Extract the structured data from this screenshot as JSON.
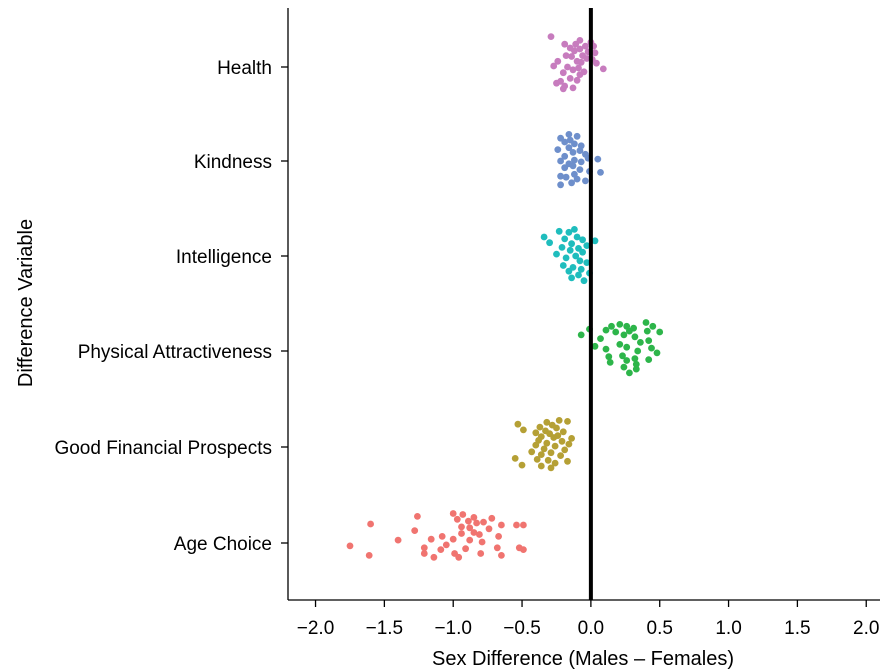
{
  "chart_data": {
    "type": "scatter",
    "xlabel": "Sex Difference (Males – Females)",
    "ylabel": "Difference Variable",
    "xlim": [
      -2.2,
      2.1
    ],
    "x_ticks": [
      -2.0,
      -1.5,
      -1.0,
      -0.5,
      0.0,
      0.5,
      1.0,
      1.5,
      2.0
    ],
    "x_tick_labels": [
      "−2.0",
      "−1.5",
      "−1.0",
      "−0.5",
      "0.0",
      "0.5",
      "1.0",
      "1.5",
      "2.0"
    ],
    "reference_line_x": 0,
    "grid": false,
    "legend": "none",
    "categories": [
      "Health",
      "Kindness",
      "Intelligence",
      "Physical Attractiveness",
      "Good Financial Prospects",
      "Age Choice"
    ],
    "series": [
      {
        "category": "Health",
        "color": "#C77CBE",
        "points": [
          [
            -0.29,
            0.32
          ],
          [
            -0.08,
            0.28
          ],
          [
            0.0,
            0.26
          ],
          [
            -0.19,
            0.24
          ],
          [
            -0.11,
            0.24
          ],
          [
            -0.04,
            0.22
          ],
          [
            0.02,
            0.22
          ],
          [
            -0.15,
            0.2
          ],
          [
            -0.08,
            0.19
          ],
          [
            -0.12,
            0.17
          ],
          [
            -0.02,
            0.16
          ],
          [
            0.03,
            0.15
          ],
          [
            -0.18,
            0.12
          ],
          [
            -0.06,
            0.12
          ],
          [
            -0.14,
            0.11
          ],
          [
            -0.03,
            0.09
          ],
          [
            0.01,
            0.08
          ],
          [
            -0.24,
            0.06
          ],
          [
            -0.1,
            0.06
          ],
          [
            -0.07,
            0.05
          ],
          [
            0.04,
            0.04
          ],
          [
            -0.27,
            0.01
          ],
          [
            -0.17,
            0.0
          ],
          [
            -0.09,
            -0.01
          ],
          [
            0.09,
            -0.02
          ],
          [
            -0.13,
            -0.03
          ],
          [
            -0.05,
            -0.05
          ],
          [
            -0.2,
            -0.06
          ],
          [
            -0.08,
            -0.08
          ],
          [
            -0.15,
            -0.12
          ],
          [
            -0.1,
            -0.14
          ],
          [
            -0.22,
            -0.15
          ],
          [
            -0.25,
            -0.17
          ],
          [
            -0.19,
            -0.2
          ],
          [
            -0.13,
            -0.22
          ],
          [
            -0.2,
            -0.23
          ]
        ]
      },
      {
        "category": "Kindness",
        "color": "#6E8FCB",
        "points": [
          [
            -0.16,
            0.28
          ],
          [
            -0.1,
            0.26
          ],
          [
            -0.22,
            0.24
          ],
          [
            -0.15,
            0.22
          ],
          [
            -0.19,
            0.2
          ],
          [
            -0.12,
            0.18
          ],
          [
            -0.07,
            0.16
          ],
          [
            -0.16,
            0.14
          ],
          [
            -0.24,
            0.12
          ],
          [
            -0.08,
            0.11
          ],
          [
            -0.13,
            0.09
          ],
          [
            -0.04,
            0.07
          ],
          [
            -0.19,
            0.05
          ],
          [
            -0.02,
            0.03
          ],
          [
            0.05,
            0.02
          ],
          [
            -0.12,
            0.01
          ],
          [
            -0.22,
            0.0
          ],
          [
            -0.07,
            -0.01
          ],
          [
            -0.16,
            -0.03
          ],
          [
            -0.13,
            -0.05
          ],
          [
            -0.19,
            -0.07
          ],
          [
            -0.08,
            -0.09
          ],
          [
            -0.01,
            -0.11
          ],
          [
            0.07,
            -0.12
          ],
          [
            -0.12,
            -0.14
          ],
          [
            -0.22,
            -0.16
          ],
          [
            -0.18,
            -0.17
          ],
          [
            -0.1,
            -0.19
          ],
          [
            -0.04,
            -0.21
          ],
          [
            -0.14,
            -0.23
          ],
          [
            -0.22,
            -0.25
          ]
        ]
      },
      {
        "category": "Intelligence",
        "color": "#1FBDBD",
        "points": [
          [
            -0.12,
            0.28
          ],
          [
            -0.23,
            0.26
          ],
          [
            -0.16,
            0.25
          ],
          [
            -0.34,
            0.2
          ],
          [
            -0.1,
            0.2
          ],
          [
            -0.19,
            0.18
          ],
          [
            -0.06,
            0.17
          ],
          [
            0.03,
            0.16
          ],
          [
            -0.3,
            0.14
          ],
          [
            -0.14,
            0.13
          ],
          [
            -0.03,
            0.11
          ],
          [
            -0.21,
            0.09
          ],
          [
            -0.09,
            0.08
          ],
          [
            -0.15,
            0.06
          ],
          [
            -0.06,
            0.04
          ],
          [
            -0.25,
            0.02
          ],
          [
            -0.11,
            0.0
          ],
          [
            -0.18,
            -0.02
          ],
          [
            -0.08,
            -0.05
          ],
          [
            -0.03,
            -0.07
          ],
          [
            -0.2,
            -0.1
          ],
          [
            -0.13,
            -0.12
          ],
          [
            -0.07,
            -0.14
          ],
          [
            -0.16,
            -0.16
          ],
          [
            -0.01,
            -0.18
          ],
          [
            -0.09,
            -0.2
          ],
          [
            -0.14,
            -0.23
          ],
          [
            -0.05,
            -0.26
          ]
        ]
      },
      {
        "category": "Physical Attractiveness",
        "color": "#2DB54A",
        "points": [
          [
            0.4,
            0.3
          ],
          [
            0.21,
            0.28
          ],
          [
            0.15,
            0.26
          ],
          [
            0.26,
            0.26
          ],
          [
            0.45,
            0.26
          ],
          [
            0.31,
            0.24
          ],
          [
            -0.01,
            0.23
          ],
          [
            0.11,
            0.22
          ],
          [
            0.28,
            0.21
          ],
          [
            0.41,
            0.21
          ],
          [
            0.18,
            0.2
          ],
          [
            0.5,
            0.2
          ],
          [
            -0.07,
            0.17
          ],
          [
            0.24,
            0.17
          ],
          [
            0.32,
            0.15
          ],
          [
            0.07,
            0.13
          ],
          [
            0.42,
            0.11
          ],
          [
            0.36,
            0.09
          ],
          [
            0.21,
            0.07
          ],
          [
            0.03,
            0.05
          ],
          [
            0.26,
            0.04
          ],
          [
            0.44,
            0.03
          ],
          [
            0.11,
            0.02
          ],
          [
            0.34,
            0.0
          ],
          [
            0.48,
            -0.02
          ],
          [
            0.23,
            -0.05
          ],
          [
            0.13,
            -0.06
          ],
          [
            0.32,
            -0.08
          ],
          [
            0.42,
            -0.09
          ],
          [
            0.26,
            -0.1
          ],
          [
            0.14,
            -0.12
          ],
          [
            0.33,
            -0.14
          ],
          [
            0.24,
            -0.17
          ],
          [
            0.33,
            -0.19
          ],
          [
            0.28,
            -0.23
          ]
        ]
      },
      {
        "category": "Good Financial Prospects",
        "color": "#B5A035",
        "points": [
          [
            -0.23,
            0.28
          ],
          [
            -0.17,
            0.27
          ],
          [
            -0.32,
            0.26
          ],
          [
            -0.53,
            0.24
          ],
          [
            -0.28,
            0.23
          ],
          [
            -0.37,
            0.21
          ],
          [
            -0.25,
            0.2
          ],
          [
            -0.49,
            0.18
          ],
          [
            -0.33,
            0.17
          ],
          [
            -0.2,
            0.16
          ],
          [
            -0.4,
            0.15
          ],
          [
            -0.3,
            0.14
          ],
          [
            -0.24,
            0.12
          ],
          [
            -0.36,
            0.11
          ],
          [
            -0.27,
            0.1
          ],
          [
            -0.14,
            0.09
          ],
          [
            -0.38,
            0.07
          ],
          [
            -0.21,
            0.06
          ],
          [
            -0.32,
            0.04
          ],
          [
            -0.16,
            0.03
          ],
          [
            -0.4,
            0.02
          ],
          [
            -0.26,
            0.01
          ],
          [
            -0.34,
            -0.02
          ],
          [
            -0.19,
            -0.03
          ],
          [
            -0.43,
            -0.05
          ],
          [
            -0.29,
            -0.06
          ],
          [
            -0.36,
            -0.08
          ],
          [
            -0.22,
            -0.09
          ],
          [
            -0.55,
            -0.12
          ],
          [
            -0.39,
            -0.13
          ],
          [
            -0.31,
            -0.14
          ],
          [
            -0.17,
            -0.15
          ],
          [
            -0.26,
            -0.17
          ],
          [
            -0.5,
            -0.19
          ],
          [
            -0.36,
            -0.2
          ],
          [
            -0.29,
            -0.22
          ]
        ]
      },
      {
        "category": "Age Choice",
        "color": "#F07470",
        "points": [
          [
            -1.0,
            0.31
          ],
          [
            -0.93,
            0.3
          ],
          [
            -1.26,
            0.28
          ],
          [
            -0.85,
            0.27
          ],
          [
            -0.72,
            0.26
          ],
          [
            -0.97,
            0.25
          ],
          [
            -0.89,
            0.23
          ],
          [
            -0.78,
            0.22
          ],
          [
            -1.6,
            0.2
          ],
          [
            -0.83,
            0.21
          ],
          [
            -0.54,
            0.19
          ],
          [
            -0.49,
            0.19
          ],
          [
            -0.65,
            0.19
          ],
          [
            -0.94,
            0.17
          ],
          [
            -0.88,
            0.16
          ],
          [
            -0.74,
            0.15
          ],
          [
            -1.28,
            0.13
          ],
          [
            -0.85,
            0.11
          ],
          [
            -0.94,
            0.1
          ],
          [
            -0.81,
            0.09
          ],
          [
            -1.08,
            0.07
          ],
          [
            -0.67,
            0.07
          ],
          [
            -1.4,
            0.03
          ],
          [
            -1.16,
            0.04
          ],
          [
            -1.0,
            0.04
          ],
          [
            -0.88,
            0.03
          ],
          [
            -0.79,
            0.01
          ],
          [
            -1.75,
            -0.03
          ],
          [
            -1.05,
            -0.02
          ],
          [
            -1.21,
            -0.05
          ],
          [
            -0.91,
            -0.06
          ],
          [
            -0.68,
            -0.05
          ],
          [
            -0.52,
            -0.05
          ],
          [
            -0.49,
            -0.07
          ],
          [
            -1.09,
            -0.07
          ],
          [
            -0.99,
            -0.11
          ],
          [
            -0.8,
            -0.11
          ],
          [
            -1.21,
            -0.11
          ],
          [
            -1.61,
            -0.13
          ],
          [
            -1.14,
            -0.15
          ],
          [
            -0.96,
            -0.15
          ],
          [
            -0.65,
            -0.13
          ]
        ]
      }
    ]
  }
}
